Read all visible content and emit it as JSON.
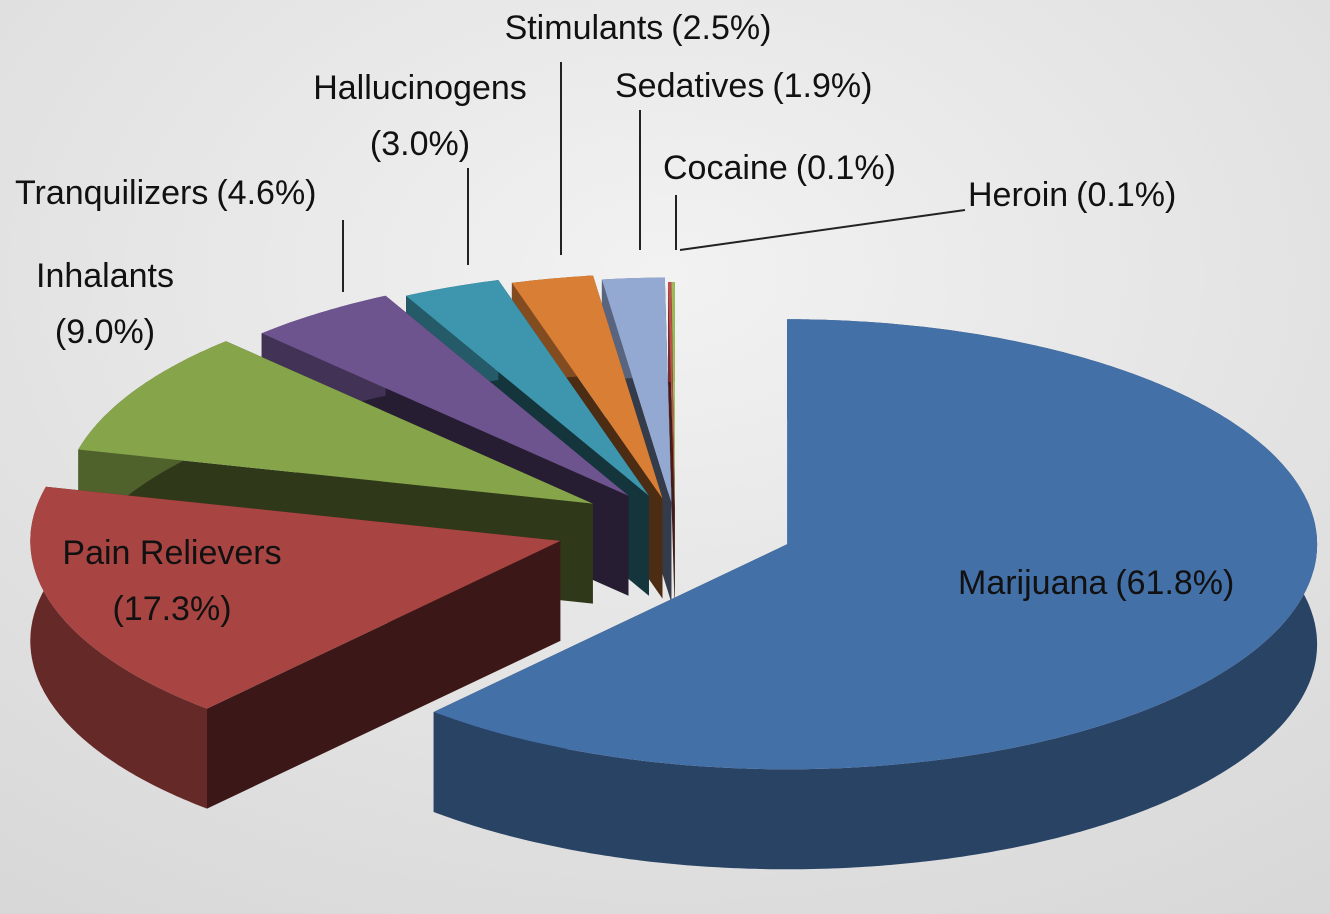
{
  "chart_data": {
    "type": "pie3d",
    "categories": [
      "Marijuana",
      "Pain Relievers",
      "Inhalants",
      "Tranquilizers",
      "Hallucinogens",
      "Stimulants",
      "Sedatives",
      "Cocaine",
      "Heroin"
    ],
    "values": [
      61.8,
      17.3,
      9.0,
      4.6,
      3.0,
      2.5,
      1.9,
      0.1,
      0.1
    ],
    "value_labels": [
      "(61.8%)",
      "(17.3%)",
      "(9.0%)",
      "(4.6%)",
      "(3.0%)",
      "(2.5%)",
      "(1.9%)",
      "(0.1%)",
      "(0.1%)"
    ],
    "colors": [
      "#4470a8",
      "#a84441",
      "#86a44a",
      "#6e548f",
      "#3d96ad",
      "#d97f35",
      "#94a9d2",
      "#c0504d",
      "#9bbb59"
    ]
  }
}
